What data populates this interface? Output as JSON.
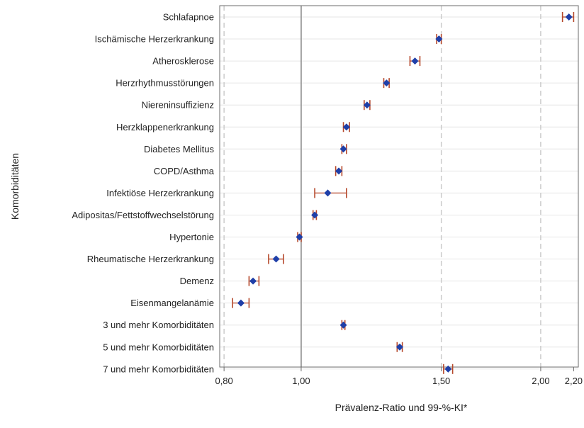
{
  "chart_data": {
    "type": "forest",
    "xlabel": "Prävalenz-Ratio und 99-%-KI*",
    "ylabel": "Komorbiditäten",
    "x_scale": "log",
    "xlim": [
      0.79,
      2.23
    ],
    "x_ticks": [
      {
        "value": 0.8,
        "label": "0,80"
      },
      {
        "value": 1.0,
        "label": "1,00"
      },
      {
        "value": 1.5,
        "label": "1,50"
      },
      {
        "value": 2.0,
        "label": "2,00"
      },
      {
        "value": 2.2,
        "label": "2,20"
      }
    ],
    "reference_lines": [
      {
        "value": 0.8,
        "style": "dashed"
      },
      {
        "value": 1.0,
        "style": "solid"
      },
      {
        "value": 1.5,
        "style": "dashed"
      },
      {
        "value": 2.0,
        "style": "dashed"
      }
    ],
    "grid": true,
    "rows": [
      {
        "label": "Schlafapnoe",
        "value": 2.17,
        "ci": [
          2.13,
          2.2
        ]
      },
      {
        "label": "Ischämische Herzerkrankung",
        "value": 1.49,
        "ci": [
          1.48,
          1.5
        ]
      },
      {
        "label": "Atherosklerose",
        "value": 1.39,
        "ci": [
          1.37,
          1.41
        ]
      },
      {
        "label": "Herzrhythmusstörungen",
        "value": 1.28,
        "ci": [
          1.27,
          1.29
        ]
      },
      {
        "label": "Niereninsuffizienz",
        "value": 1.21,
        "ci": [
          1.2,
          1.22
        ]
      },
      {
        "label": "Herzklappenerkrankung",
        "value": 1.14,
        "ci": [
          1.13,
          1.15
        ]
      },
      {
        "label": "Diabetes Mellitus",
        "value": 1.13,
        "ci": [
          1.125,
          1.14
        ]
      },
      {
        "label": "COPD/Asthma",
        "value": 1.115,
        "ci": [
          1.105,
          1.125
        ]
      },
      {
        "label": "Infektiöse Herzerkrankung",
        "value": 1.08,
        "ci": [
          1.04,
          1.14
        ]
      },
      {
        "label": "Adipositas/Fettstoffwechselstörung",
        "value": 1.04,
        "ci": [
          1.035,
          1.045
        ]
      },
      {
        "label": "Hypertonie",
        "value": 0.995,
        "ci": [
          0.99,
          1.0
        ]
      },
      {
        "label": "Rheumatische Herzerkrankung",
        "value": 0.93,
        "ci": [
          0.91,
          0.95
        ]
      },
      {
        "label": "Demenz",
        "value": 0.87,
        "ci": [
          0.86,
          0.885
        ]
      },
      {
        "label": "Eisenmangelanämie",
        "value": 0.84,
        "ci": [
          0.82,
          0.86
        ]
      },
      {
        "label": "3 und mehr Komorbiditäten",
        "value": 1.13,
        "ci": [
          1.125,
          1.135
        ]
      },
      {
        "label": "5 und mehr Komorbiditäten",
        "value": 1.33,
        "ci": [
          1.32,
          1.34
        ]
      },
      {
        "label": "7 und mehr Komorbiditäten",
        "value": 1.53,
        "ci": [
          1.51,
          1.55
        ]
      }
    ],
    "colors": {
      "marker": "#1f3fa8",
      "ci": "#b5472a",
      "grid": "#e6e6e6",
      "refline": "#c8c8c8",
      "baseline": "#8c8c8c",
      "frame": "#6b6b6b"
    }
  }
}
